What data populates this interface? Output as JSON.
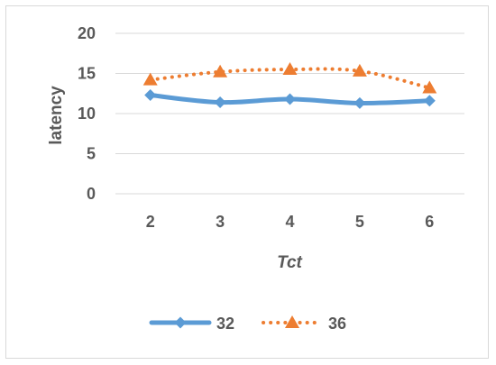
{
  "chart_data": {
    "type": "line",
    "title": "",
    "xlabel": "Tct",
    "ylabel": "latency",
    "categories": [
      "2",
      "3",
      "4",
      "5",
      "6"
    ],
    "ylim": [
      0,
      20
    ],
    "yticks": [
      "0",
      "5",
      "10",
      "15",
      "20"
    ],
    "grid": true,
    "legend_position": "bottom",
    "series": [
      {
        "name": "32",
        "values": [
          12.3,
          11.4,
          11.8,
          11.3,
          11.6
        ],
        "color": "#5b9bd5",
        "marker": "diamond",
        "line_style": "solid"
      },
      {
        "name": "36",
        "values": [
          14.2,
          15.2,
          15.5,
          15.3,
          13.2
        ],
        "color": "#ed7d31",
        "marker": "triangle",
        "line_style": "dotted"
      }
    ]
  }
}
